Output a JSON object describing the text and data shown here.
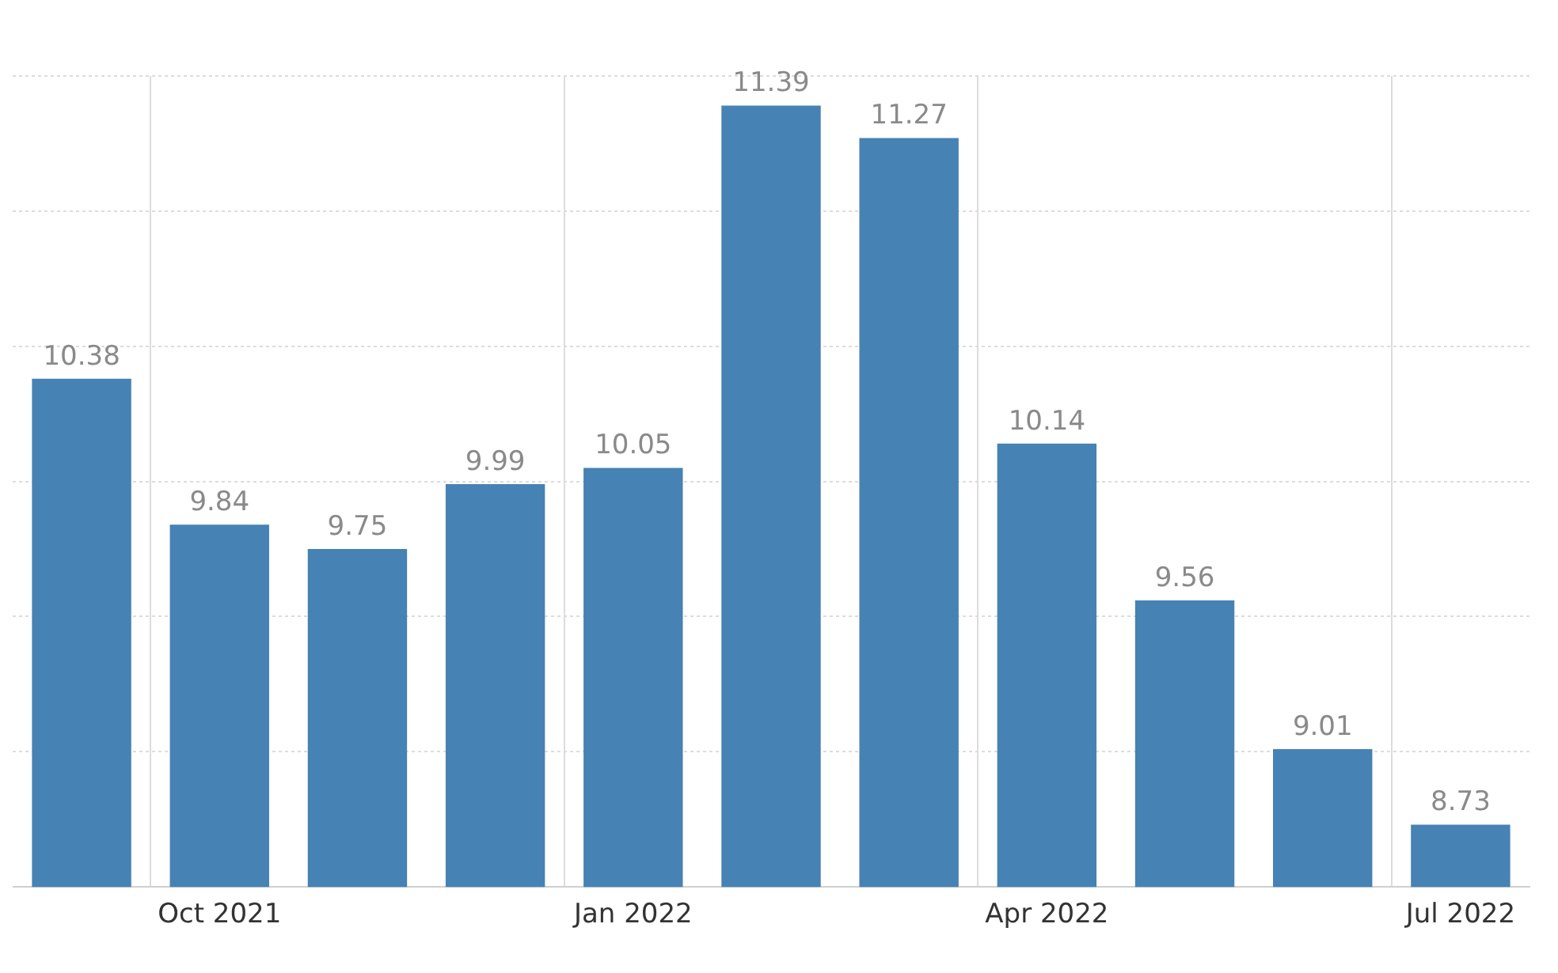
{
  "chart_data": {
    "type": "bar",
    "categories": [
      null,
      "Oct 2021",
      null,
      null,
      "Jan 2022",
      null,
      null,
      "Apr 2022",
      null,
      null,
      "Jul 2022"
    ],
    "values": [
      10.38,
      9.84,
      9.75,
      9.99,
      10.05,
      11.39,
      11.27,
      10.14,
      9.56,
      9.01,
      8.73
    ],
    "color": "#4682b4",
    "data_labels": true,
    "ylim": [
      8.5,
      11.5
    ],
    "yticks": [
      8.5,
      9,
      9.5,
      10,
      10.5,
      11,
      11.5
    ],
    "tick_labels": "x",
    "grid": true
  }
}
